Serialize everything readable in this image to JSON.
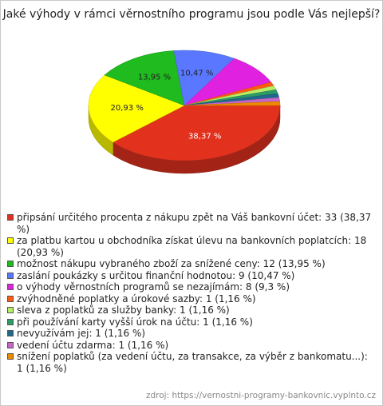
{
  "chart_data": {
    "type": "pie",
    "title": "Jaké výhody v rámci věrnostního programu jsou podle Vás nejlepší?",
    "categories": [
      "připsání určitého procenta z nákupu zpět na Váš bankovní účet: 33 (38,37 %)",
      "za platbu kartou u obchodníka získat úlevu na bankovních poplatcích: 18 (20,93 %)",
      "možnost nákupu vybraného zboží za snížené ceny: 12 (13,95 %)",
      "zaslání poukázky s určitou finanční hodnotou: 9 (10,47 %)",
      "o výhody věrnostních programů se nezajímám: 8 (9,3 %)",
      "zvýhodněné poplatky a úrokové sazby: 1 (1,16 %)",
      "sleva z poplatků za služby banky: 1 (1,16 %)",
      "při používání karty vyšší úrok na účtu: 1 (1,16 %)",
      "nevyužívám jej: 1 (1,16 %)",
      "vedení účtu zdarma: 1 (1,16 %)",
      "snížení poplatků (za vedení účtu, za transakce, za výběr z bankomatu...): 1 (1,16 %)"
    ],
    "values": [
      38.37,
      20.93,
      13.95,
      10.47,
      9.3,
      1.16,
      1.16,
      1.16,
      1.16,
      1.16,
      1.16
    ],
    "value_labels": [
      "38,37 %",
      "20,93 %",
      "13,95 %",
      "10,47 %",
      null,
      null,
      null,
      null,
      null,
      null,
      null
    ],
    "colors": [
      "#e2321e",
      "#ffff00",
      "#1fbb1f",
      "#5a78ff",
      "#e022e0",
      "#ff5a10",
      "#b8ee66",
      "#2e9a66",
      "#1f6a8c",
      "#c866c8",
      "#ee8a00"
    ],
    "source": "zdroj: https://vernostni-programy-bankovnic.vyplnto.cz"
  }
}
